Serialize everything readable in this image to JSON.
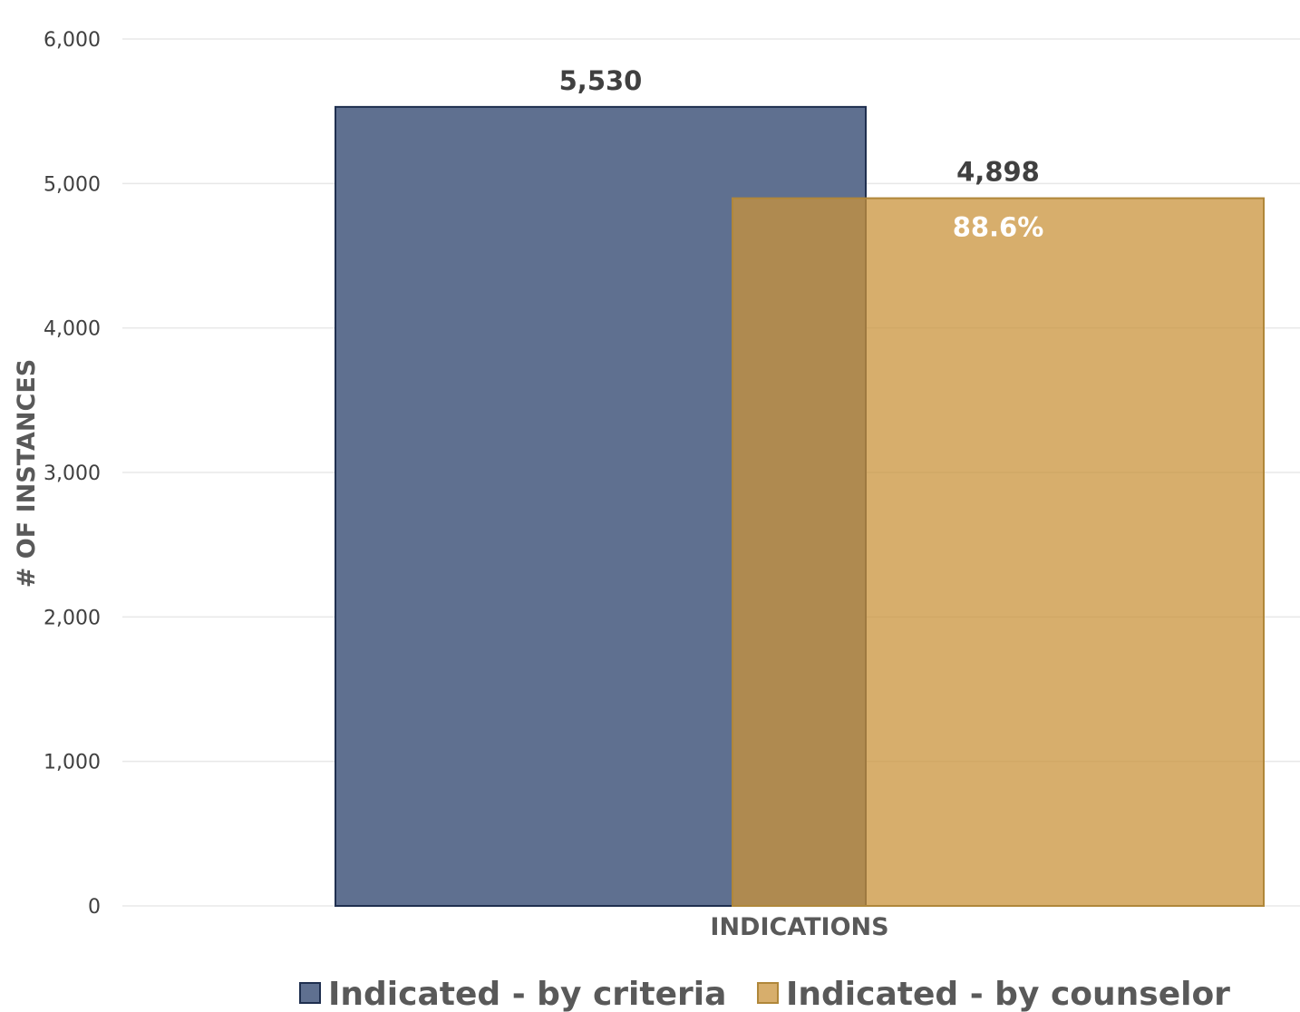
{
  "chart_data": {
    "type": "bar",
    "categories": [
      "INDICATIONS"
    ],
    "xlabel": "INDICATIONS",
    "ylabel": "# OF INSTANCES",
    "ylim": [
      0,
      6000
    ],
    "yticks": [
      0,
      1000,
      2000,
      3000,
      4000,
      5000,
      6000
    ],
    "ytick_labels": [
      "0",
      "1,000",
      "2,000",
      "3,000",
      "4,000",
      "5,000",
      "6,000"
    ],
    "grid": true,
    "legend_position": "bottom",
    "overlap": true,
    "series": [
      {
        "name": "Indicated - by criteria",
        "values": [
          5530
        ],
        "value_label": "5,530",
        "color": "#5f7090",
        "border": "#1f2f4f"
      },
      {
        "name": "Indicated - by counselor",
        "values": [
          4898
        ],
        "value_label": "4,898",
        "inner_label": "88.6%",
        "color": "#c9933b",
        "opacity": 0.75,
        "border": "#b0873a"
      }
    ]
  }
}
